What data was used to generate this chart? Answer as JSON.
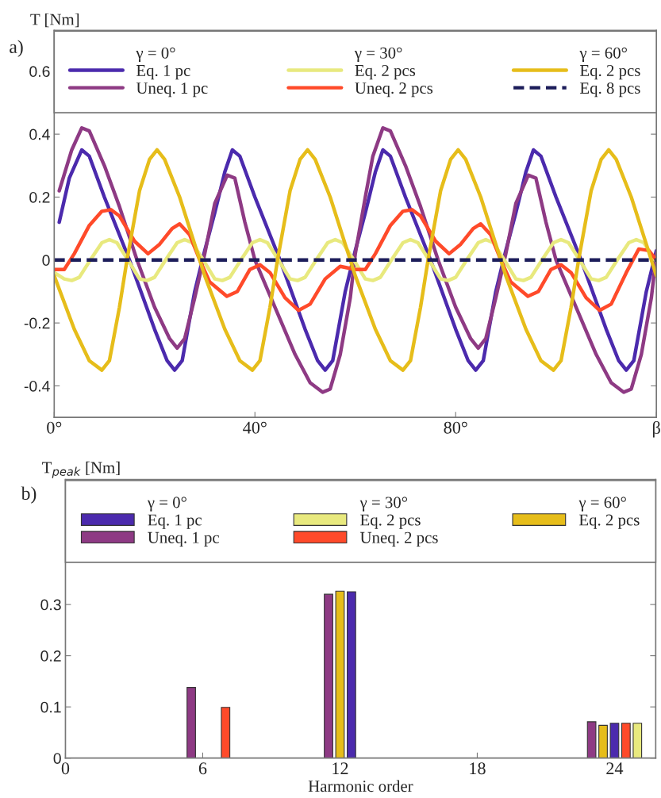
{
  "chart_data": [
    {
      "type": "line",
      "title": "a)",
      "ylabel": "T [Nm]",
      "annotations": [
        "γ = 0°",
        "γ = 30°",
        "γ = 60°"
      ],
      "legend": "top",
      "xlim": [
        0,
        120
      ],
      "xticks": [
        {
          "value": 0,
          "label": "0°"
        },
        {
          "value": 40,
          "label": "40°"
        },
        {
          "value": 80,
          "label": "80°"
        },
        {
          "value": 120,
          "label": "β"
        }
      ],
      "ylim": [
        -0.5,
        0.73
      ],
      "yticks": [
        -0.4,
        -0.2,
        0,
        0.2,
        0.4,
        0.6
      ],
      "series": [
        {
          "name": "Eq. 1 pc",
          "color": "#4b2aad",
          "x": [
            1,
            3,
            5.5,
            7,
            10,
            15,
            20,
            22.5,
            24,
            25.5,
            28,
            30,
            32,
            34,
            35.5,
            37,
            40,
            45,
            50,
            52.5,
            54,
            55.5,
            58,
            60,
            62,
            64,
            65.5,
            67,
            70,
            75,
            80,
            82.5,
            84,
            85.5,
            88,
            90,
            92,
            94,
            95.5,
            97,
            100,
            105,
            110,
            112.5,
            114,
            115.5,
            118,
            120
          ],
          "values": [
            0.12,
            0.26,
            0.35,
            0.33,
            0.2,
            0,
            -0.22,
            -0.32,
            -0.35,
            -0.32,
            -0.1,
            0.03,
            0.15,
            0.28,
            0.35,
            0.33,
            0.2,
            0,
            -0.22,
            -0.32,
            -0.35,
            -0.32,
            -0.1,
            0.03,
            0.15,
            0.28,
            0.35,
            0.33,
            0.2,
            0,
            -0.22,
            -0.32,
            -0.35,
            -0.32,
            -0.1,
            0.03,
            0.15,
            0.28,
            0.35,
            0.33,
            0.2,
            0,
            -0.22,
            -0.32,
            -0.35,
            -0.32,
            -0.1,
            0.03
          ]
        },
        {
          "name": "Uneq. 1 pc",
          "color": "#8e3a84",
          "x": [
            1,
            3.5,
            5.5,
            7,
            10,
            13,
            16.5,
            20,
            23,
            24.5,
            26,
            28,
            30,
            32,
            34.5,
            36,
            38,
            40,
            44,
            48,
            51,
            53.5,
            55,
            57,
            59,
            60,
            62,
            63.5,
            65.5,
            67,
            70,
            73,
            76.5,
            80,
            83,
            84.5,
            86,
            88,
            90,
            92,
            94.5,
            96,
            98,
            100,
            104,
            108,
            111,
            113.5,
            115,
            117,
            119,
            120
          ],
          "values": [
            0.22,
            0.35,
            0.42,
            0.41,
            0.3,
            0.17,
            0,
            -0.15,
            -0.25,
            -0.28,
            -0.25,
            -0.12,
            0.02,
            0.18,
            0.27,
            0.26,
            0.12,
            0,
            -0.15,
            -0.3,
            -0.39,
            -0.42,
            -0.41,
            -0.3,
            -0.12,
            0.02,
            0.2,
            0.33,
            0.42,
            0.41,
            0.3,
            0.17,
            0,
            -0.15,
            -0.25,
            -0.28,
            -0.25,
            -0.12,
            0.02,
            0.18,
            0.27,
            0.26,
            0.12,
            0,
            -0.15,
            -0.3,
            -0.39,
            -0.42,
            -0.41,
            -0.3,
            -0.12,
            0.02
          ]
        },
        {
          "name": "Eq. 2 pcs",
          "color": "#e8e97e",
          "x": [
            0,
            2,
            3.5,
            5,
            7.2,
            9.5,
            11,
            12.5,
            14.7,
            17,
            18.5,
            20,
            22.2,
            24.5,
            26,
            27.5,
            29.7,
            32,
            33.5,
            35,
            37.2,
            39.5,
            41,
            42.5,
            44.7,
            47,
            48.5,
            50,
            52.2,
            54.5,
            56,
            57.5,
            59.7,
            62,
            63.5,
            65,
            67.2,
            69.5,
            71,
            72.5,
            74.7,
            77,
            78.5,
            80,
            82.2,
            84.5,
            86,
            87.5,
            89.7,
            92,
            93.5,
            95,
            97.2,
            99.5,
            101,
            102.5,
            104.7,
            107,
            108.5,
            110,
            112.2,
            114.5,
            116,
            117.5,
            119.7
          ],
          "values": [
            -0.04,
            -0.06,
            -0.065,
            -0.055,
            0,
            0.055,
            0.065,
            0.055,
            0,
            -0.06,
            -0.065,
            -0.055,
            0,
            0.055,
            0.065,
            0.055,
            0,
            -0.06,
            -0.065,
            -0.055,
            0,
            0.055,
            0.065,
            0.055,
            0,
            -0.06,
            -0.065,
            -0.055,
            0,
            0.055,
            0.065,
            0.055,
            0,
            -0.06,
            -0.065,
            -0.055,
            0,
            0.055,
            0.065,
            0.055,
            0,
            -0.06,
            -0.065,
            -0.055,
            0,
            0.055,
            0.065,
            0.055,
            0,
            -0.06,
            -0.065,
            -0.055,
            0,
            0.055,
            0.065,
            0.055,
            0,
            -0.06,
            -0.065,
            -0.055,
            0,
            0.055,
            0.065,
            0.055,
            0
          ]
        },
        {
          "name": "Uneq. 2 pcs",
          "color": "#ff4a2a",
          "x": [
            0,
            2,
            4,
            7,
            9.5,
            11.3,
            13,
            16,
            18.7,
            21,
            23.5,
            25,
            27,
            29,
            31,
            34.4,
            36.5,
            39,
            41,
            43,
            46,
            48.7,
            51,
            54,
            57,
            60,
            62,
            64,
            67,
            69.5,
            71.3,
            73,
            76,
            78.7,
            81,
            83.5,
            85,
            87,
            89,
            91,
            94.4,
            96.5,
            99,
            101,
            103,
            106,
            108.7,
            111,
            114,
            116.5,
            118.5,
            120
          ],
          "values": [
            -0.03,
            -0.03,
            0.02,
            0.11,
            0.155,
            0.16,
            0.14,
            0.06,
            0.02,
            0.05,
            0.1,
            0.115,
            0.08,
            0,
            -0.07,
            -0.115,
            -0.1,
            -0.03,
            -0.015,
            -0.04,
            -0.12,
            -0.16,
            -0.14,
            -0.06,
            -0.02,
            -0.03,
            -0.03,
            0.02,
            0.11,
            0.155,
            0.16,
            0.14,
            0.06,
            0.02,
            0.05,
            0.1,
            0.115,
            0.08,
            0,
            -0.07,
            -0.115,
            -0.1,
            -0.03,
            -0.015,
            -0.04,
            -0.12,
            -0.16,
            -0.14,
            -0.04,
            0.035,
            0.03,
            0
          ]
        },
        {
          "name": "Eq. 2 pcs",
          "color": "#e6bd1a",
          "x": [
            0,
            4,
            7,
            9.5,
            11,
            13,
            14.5,
            17,
            19,
            20.5,
            22,
            25,
            30,
            34,
            37,
            39.5,
            41,
            43,
            44.5,
            47,
            49,
            50.5,
            52,
            55,
            60,
            64,
            67,
            69.5,
            71,
            73,
            74.5,
            77,
            79,
            80.5,
            82,
            85,
            90,
            94,
            97,
            99.5,
            101,
            103,
            104.5,
            107,
            109,
            110.5,
            112,
            115,
            120
          ],
          "values": [
            -0.05,
            -0.22,
            -0.32,
            -0.35,
            -0.32,
            -0.15,
            0,
            0.22,
            0.32,
            0.35,
            0.32,
            0.2,
            -0.05,
            -0.22,
            -0.32,
            -0.35,
            -0.32,
            -0.15,
            0,
            0.22,
            0.32,
            0.35,
            0.32,
            0.2,
            -0.05,
            -0.22,
            -0.32,
            -0.35,
            -0.32,
            -0.15,
            0,
            0.22,
            0.32,
            0.35,
            0.32,
            0.2,
            -0.05,
            -0.22,
            -0.32,
            -0.35,
            -0.32,
            -0.15,
            0,
            0.22,
            0.32,
            0.35,
            0.32,
            0.2,
            -0.05
          ]
        },
        {
          "name": "Eq. 8 pcs",
          "color": "#1c1d5a",
          "line_style": "dashed",
          "x": [
            0,
            30,
            60,
            90,
            120
          ],
          "values": [
            0,
            0,
            0,
            0,
            0
          ]
        }
      ]
    },
    {
      "type": "bar",
      "title": "b)",
      "ylabel": "T$_{peak}$ [Nm]",
      "xlabel": "Harmonic order",
      "annotations": [
        "γ = 0°",
        "γ = 30°",
        "γ = 60°"
      ],
      "legend": "top",
      "xlim": [
        0,
        25.8
      ],
      "xticks": [
        0,
        6,
        12,
        18,
        24
      ],
      "ylim": [
        0,
        0.544
      ],
      "yticks": [
        0,
        0.1,
        0.2,
        0.3
      ],
      "series": [
        {
          "name": "Eq. 1 pc",
          "color": "#4b2aad",
          "x": [
            12.5,
            24.0
          ],
          "values": [
            0.325,
            0.068
          ]
        },
        {
          "name": "Uneq. 1 pc",
          "color": "#8e3a84",
          "x": [
            5.5,
            11.5,
            23.0
          ],
          "values": [
            0.138,
            0.32,
            0.071
          ]
        },
        {
          "name": "Eq. 2 pcs",
          "color": "#e8e97e",
          "x": [
            25.0
          ],
          "values": [
            0.068
          ]
        },
        {
          "name": "Uneq. 2 pcs",
          "color": "#ff4a2a",
          "x": [
            7.0,
            24.5
          ],
          "values": [
            0.099,
            0.068
          ]
        },
        {
          "name": "Eq. 2 pcs",
          "color": "#e6bd1a",
          "x": [
            12.0,
            23.5
          ],
          "values": [
            0.326,
            0.064
          ]
        }
      ]
    }
  ]
}
